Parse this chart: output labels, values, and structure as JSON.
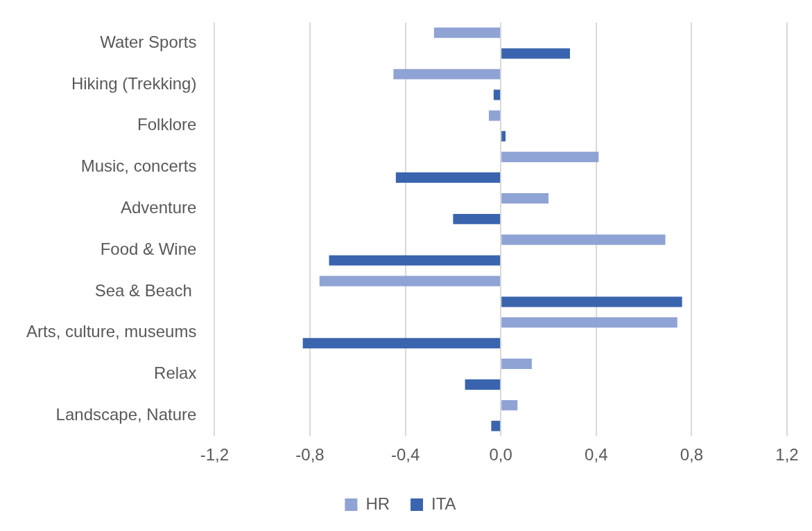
{
  "chart_data": {
    "type": "bar",
    "orientation": "horizontal",
    "categories": [
      "Water Sports",
      "Hiking (Trekking)",
      "Folklore",
      "Music, concerts",
      "Adventure",
      "Food & Wine",
      "Sea & Beach ",
      "Arts, culture, museums",
      "Relax",
      "Landscape, Nature"
    ],
    "series": [
      {
        "name": "HR",
        "color": "#8fa3d4",
        "values": [
          -0.28,
          -0.45,
          -0.05,
          0.41,
          0.2,
          0.69,
          -0.76,
          0.74,
          0.13,
          0.07
        ]
      },
      {
        "name": "ITA",
        "color": "#3a64ad",
        "values": [
          0.29,
          -0.03,
          0.02,
          -0.44,
          -0.2,
          -0.72,
          0.76,
          -0.83,
          -0.15,
          -0.04
        ]
      }
    ],
    "xlim": [
      -1.2,
      1.2
    ],
    "xticks": [
      {
        "value": -1.2,
        "label": "-1,2"
      },
      {
        "value": -0.8,
        "label": "-0,8"
      },
      {
        "value": -0.4,
        "label": "-0,4"
      },
      {
        "value": 0,
        "label": "0,0"
      },
      {
        "value": 0.4,
        "label": "0,4"
      },
      {
        "value": 0.8,
        "label": "0,8"
      },
      {
        "value": 1.2,
        "label": "1,2"
      }
    ],
    "grid": "x",
    "legend": "bottom"
  }
}
